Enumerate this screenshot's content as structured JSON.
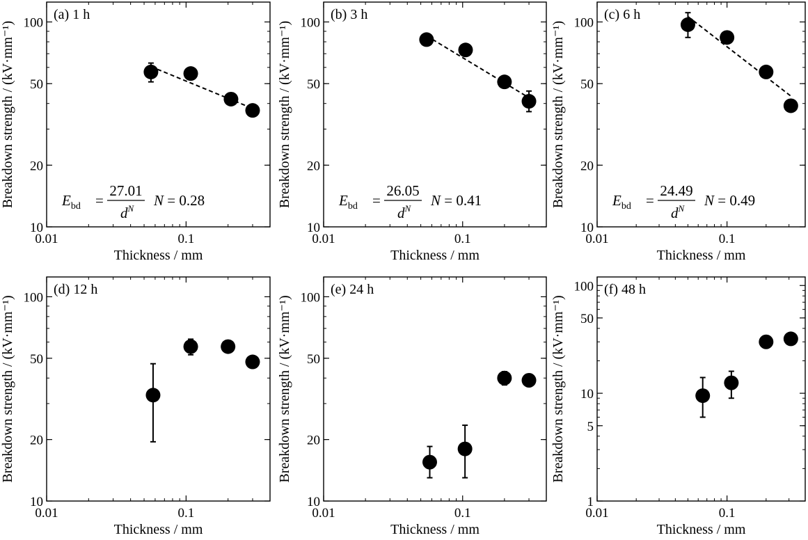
{
  "chart_data": [
    {
      "type": "scatter",
      "panel_label": "(a) 1 h",
      "xlabel": "Thickness / mm",
      "ylabel": "Breakdown strength / (kV·mm⁻¹)",
      "xscale": "log",
      "yscale": "log",
      "xlim": [
        0.01,
        0.4
      ],
      "ylim": [
        10,
        125
      ],
      "xticks": [
        0.01,
        0.1
      ],
      "xtick_labels": [
        "0.01",
        "0.1"
      ],
      "yticks": [
        10,
        20,
        50,
        100
      ],
      "ytick_labels": [
        "10",
        "20",
        "50",
        "100"
      ],
      "points": [
        {
          "x": 0.056,
          "y": 57,
          "err_low": 51,
          "err_high": 63
        },
        {
          "x": 0.108,
          "y": 56,
          "err_low": 56,
          "err_high": 56
        },
        {
          "x": 0.21,
          "y": 42,
          "err_low": 39.5,
          "err_high": 45
        },
        {
          "x": 0.3,
          "y": 37,
          "err_low": 35,
          "err_high": 39
        }
      ],
      "fit": {
        "A": 27.01,
        "N": 0.28,
        "x_range": [
          0.056,
          0.3
        ]
      },
      "equation": {
        "lhs": "E",
        "lhs_sub": "bd",
        "equals": "=",
        "numerator": "27.01",
        "den_base": "d",
        "den_sup": "N",
        "n_text": "N = 0.28"
      }
    },
    {
      "type": "scatter",
      "panel_label": "(b) 3 h",
      "xlabel": "Thickness / mm",
      "ylabel": "Breakdown strength / (kV·mm⁻¹)",
      "xscale": "log",
      "yscale": "log",
      "xlim": [
        0.01,
        0.4
      ],
      "ylim": [
        10,
        125
      ],
      "xticks": [
        0.01,
        0.1
      ],
      "xtick_labels": [
        "0.01",
        "0.1"
      ],
      "yticks": [
        10,
        20,
        50,
        100
      ],
      "ytick_labels": [
        "10",
        "20",
        "50",
        "100"
      ],
      "points": [
        {
          "x": 0.055,
          "y": 82,
          "err_low": 82,
          "err_high": 82
        },
        {
          "x": 0.105,
          "y": 73,
          "err_low": 73,
          "err_high": 73
        },
        {
          "x": 0.2,
          "y": 51,
          "err_low": 49,
          "err_high": 53
        },
        {
          "x": 0.3,
          "y": 41,
          "err_low": 36.5,
          "err_high": 46
        }
      ],
      "fit": {
        "A": 26.05,
        "N": 0.41,
        "x_range": [
          0.055,
          0.3
        ]
      },
      "equation": {
        "lhs": "E",
        "lhs_sub": "bd",
        "equals": "=",
        "numerator": "26.05",
        "den_base": "d",
        "den_sup": "N",
        "n_text": "N = 0.41"
      }
    },
    {
      "type": "scatter",
      "panel_label": "(c) 6 h",
      "xlabel": "Thickness / mm",
      "ylabel": "Breakdown strength / (kV·mm⁻¹)",
      "xscale": "log",
      "yscale": "log",
      "xlim": [
        0.01,
        0.4
      ],
      "ylim": [
        10,
        125
      ],
      "xticks": [
        0.01,
        0.1
      ],
      "xtick_labels": [
        "0.01",
        "0.1"
      ],
      "yticks": [
        10,
        20,
        50,
        100
      ],
      "ytick_labels": [
        "10",
        "20",
        "50",
        "100"
      ],
      "points": [
        {
          "x": 0.05,
          "y": 97,
          "err_low": 84,
          "err_high": 111
        },
        {
          "x": 0.1,
          "y": 84,
          "err_low": 84,
          "err_high": 84
        },
        {
          "x": 0.2,
          "y": 57,
          "err_low": 57,
          "err_high": 57
        },
        {
          "x": 0.31,
          "y": 39,
          "err_low": 39,
          "err_high": 39
        }
      ],
      "fit": {
        "A": 24.49,
        "N": 0.49,
        "x_range": [
          0.05,
          0.31
        ]
      },
      "equation": {
        "lhs": "E",
        "lhs_sub": "bd",
        "equals": "=",
        "numerator": "24.49",
        "den_base": "d",
        "den_sup": "N",
        "n_text": "N = 0.49"
      }
    },
    {
      "type": "scatter",
      "panel_label": "(d) 12 h",
      "xlabel": "Thickness / mm",
      "ylabel": "Breakdown strength / (kV·mm⁻¹)",
      "xscale": "log",
      "yscale": "log",
      "xlim": [
        0.01,
        0.4
      ],
      "ylim": [
        10,
        125
      ],
      "xticks": [
        0.01,
        0.1
      ],
      "xtick_labels": [
        "0.01",
        "0.1"
      ],
      "yticks": [
        10,
        20,
        50,
        100
      ],
      "ytick_labels": [
        "10",
        "20",
        "50",
        "100"
      ],
      "points": [
        {
          "x": 0.058,
          "y": 33,
          "err_low": 19.5,
          "err_high": 47
        },
        {
          "x": 0.108,
          "y": 57,
          "err_low": 52,
          "err_high": 62
        },
        {
          "x": 0.2,
          "y": 57,
          "err_low": 57,
          "err_high": 57
        },
        {
          "x": 0.3,
          "y": 48,
          "err_low": 48,
          "err_high": 48
        }
      ]
    },
    {
      "type": "scatter",
      "panel_label": "(e) 24 h",
      "xlabel": "Thickness / mm",
      "ylabel": "Breakdown strength / (kV·mm⁻¹)",
      "xscale": "log",
      "yscale": "log",
      "xlim": [
        0.01,
        0.4
      ],
      "ylim": [
        10,
        125
      ],
      "xticks": [
        0.01,
        0.1
      ],
      "xtick_labels": [
        "0.01",
        "0.1"
      ],
      "yticks": [
        10,
        20,
        50,
        100
      ],
      "ytick_labels": [
        "10",
        "20",
        "50",
        "100"
      ],
      "points": [
        {
          "x": 0.058,
          "y": 15.5,
          "err_low": 13,
          "err_high": 18.5
        },
        {
          "x": 0.104,
          "y": 18,
          "err_low": 13,
          "err_high": 23.5
        },
        {
          "x": 0.2,
          "y": 40,
          "err_low": 37,
          "err_high": 43
        },
        {
          "x": 0.3,
          "y": 39,
          "err_low": 39,
          "err_high": 39
        }
      ]
    },
    {
      "type": "scatter",
      "panel_label": "(f) 48 h",
      "xlabel": "Thickness / mm",
      "ylabel": "Breakdown strength / (kV·mm⁻¹)",
      "xscale": "log",
      "yscale": "log",
      "xlim": [
        0.01,
        0.4
      ],
      "ylim": [
        1,
        120
      ],
      "xticks": [
        0.01,
        0.1
      ],
      "xtick_labels": [
        "0.01",
        "0.1"
      ],
      "yticks": [
        1,
        5,
        10,
        50,
        100
      ],
      "ytick_labels": [
        "1",
        "5",
        "10",
        "50",
        "100"
      ],
      "points": [
        {
          "x": 0.065,
          "y": 9.5,
          "err_low": 6,
          "err_high": 14
        },
        {
          "x": 0.108,
          "y": 12.5,
          "err_low": 9,
          "err_high": 16
        },
        {
          "x": 0.2,
          "y": 30,
          "err_low": 30,
          "err_high": 30
        },
        {
          "x": 0.31,
          "y": 32,
          "err_low": 32,
          "err_high": 32
        }
      ]
    }
  ]
}
